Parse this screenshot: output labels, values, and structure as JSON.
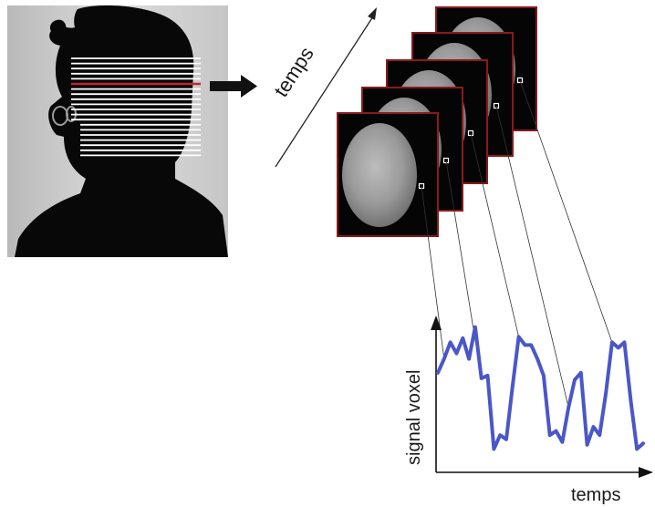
{
  "labels": {
    "time_arrow": "temps",
    "y_axis": "signal voxel",
    "x_axis": "temps"
  },
  "colors": {
    "signal_line": "#4a57c8",
    "slice_border": "#8b1a1a",
    "selected_slice_line": "#c0262d",
    "scan_lines": "#ffffff",
    "brain_bg": "#050505"
  },
  "icons": {
    "head": "head-silhouette-icon",
    "arrow": "right-arrow-icon"
  },
  "chart_data": {
    "type": "line",
    "title": "",
    "xlabel": "temps",
    "ylabel": "signal voxel",
    "series": [
      {
        "name": "",
        "values": [
          0.6,
          0.7,
          0.82,
          0.74,
          0.85,
          0.7,
          0.93,
          0.56,
          0.58,
          0.05,
          0.15,
          0.12,
          0.5,
          0.86,
          0.8,
          0.8,
          0.7,
          0.58,
          0.15,
          0.18,
          0.1,
          0.35,
          0.55,
          0.6,
          0.08,
          0.21,
          0.15,
          0.45,
          0.82,
          0.78,
          0.82,
          0.4,
          0.05,
          0.09
        ]
      }
    ]
  }
}
